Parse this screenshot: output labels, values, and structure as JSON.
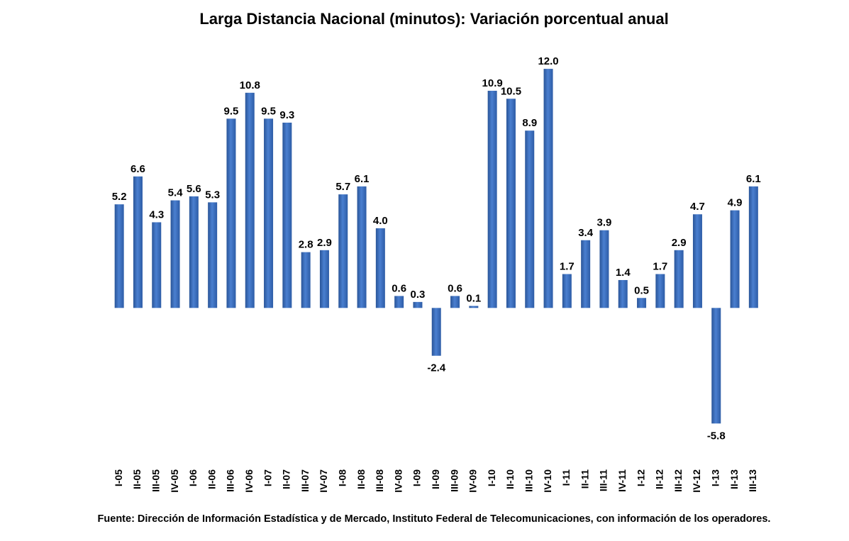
{
  "chart_data": {
    "type": "bar",
    "title": "Larga Distancia Nacional (minutos): Variación porcentual anual",
    "source": "Fuente: Dirección de Información Estadística y de Mercado, Instituto Federal de Telecomunicaciones, con información de los operadores.",
    "categories": [
      "I-05",
      "II-05",
      "III-05",
      "IV-05",
      "I-06",
      "II-06",
      "III-06",
      "IV-06",
      "I-07",
      "II-07",
      "III-07",
      "IV-07",
      "I-08",
      "II-08",
      "III-08",
      "IV-08",
      "I-09",
      "II-09",
      "III-09",
      "IV-09",
      "I-10",
      "II-10",
      "III-10",
      "IV-10",
      "I-11",
      "II-11",
      "III-11",
      "IV-11",
      "I-12",
      "II-12",
      "III-12",
      "IV-12",
      "I-13",
      "II-13",
      "III-13"
    ],
    "values": [
      5.2,
      6.6,
      4.3,
      5.4,
      5.6,
      5.3,
      9.5,
      10.8,
      9.5,
      9.3,
      2.8,
      2.9,
      5.7,
      6.1,
      4.0,
      0.6,
      0.3,
      -2.4,
      0.6,
      0.1,
      10.9,
      10.5,
      8.9,
      12.0,
      1.7,
      3.4,
      3.9,
      1.4,
      0.5,
      1.7,
      2.9,
      4.7,
      -5.8,
      4.9,
      6.1
    ],
    "value_labels": [
      "5.2",
      "6.6",
      "4.3",
      "5.4",
      "5.6",
      "5.3",
      "9.5",
      "10.8",
      "9.5",
      "9.3",
      "2.8",
      "2.9",
      "5.7",
      "6.1",
      "4.0",
      "0.6",
      "0.3",
      "-2.4",
      "0.6",
      "0.1",
      "10.9",
      "10.5",
      "8.9",
      "12.0",
      "1.7",
      "3.4",
      "3.9",
      "1.4",
      "0.5",
      "1.7",
      "2.9",
      "4.7",
      "-5.8",
      "4.9",
      "6.1"
    ],
    "color": "#4a7fd0",
    "ylim": [
      -7,
      13
    ]
  }
}
